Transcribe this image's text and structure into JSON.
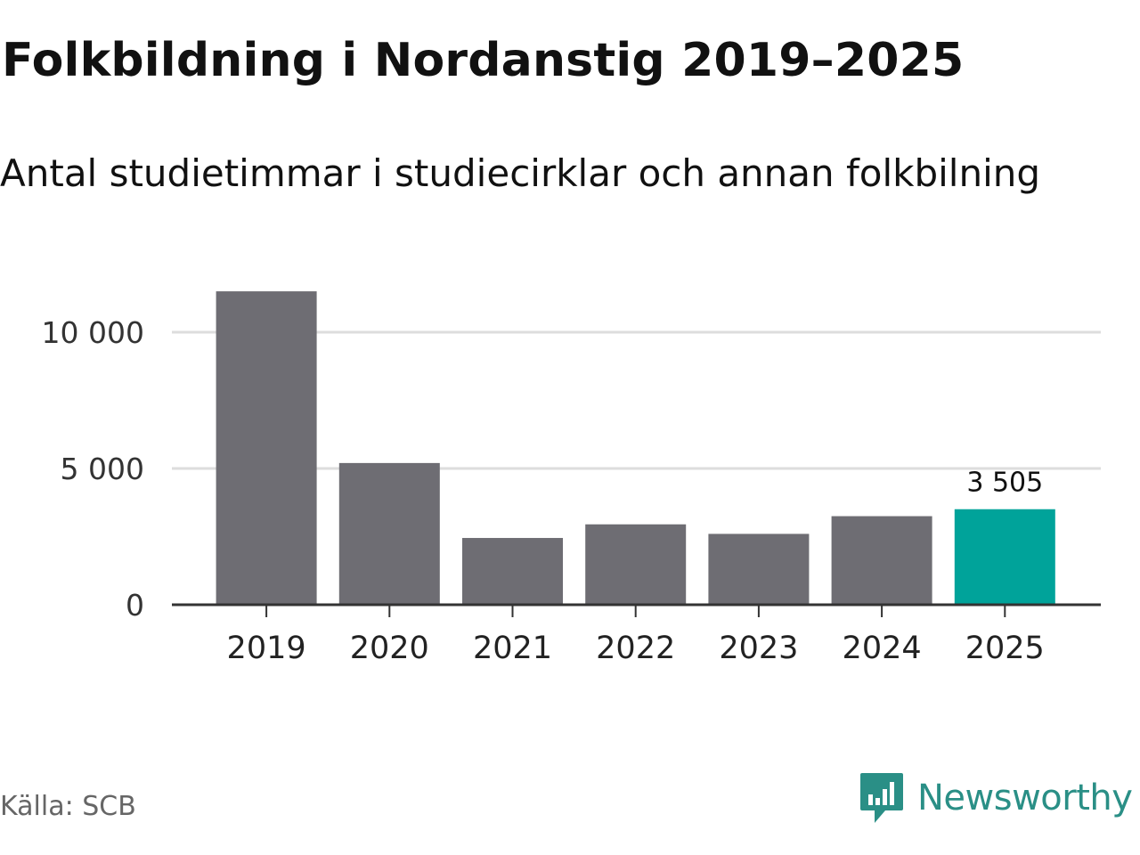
{
  "header": {
    "title": "Folkbildning i Nordanstig 2019–2025",
    "subtitle": "Antal studietimmar i studiecirklar och annan folkbilning"
  },
  "footer": {
    "source": "Källa: SCB",
    "brand": "Newsworthy"
  },
  "colors": {
    "bar": "#6e6d73",
    "highlight": "#00a39a",
    "grid": "#dddddd",
    "axis": "#333333",
    "brand": "#2a8f86"
  },
  "chart_data": {
    "type": "bar",
    "title": "Folkbildning i Nordanstig 2019–2025",
    "subtitle": "Antal studietimmar i studiecirklar och annan folkbilning",
    "categories": [
      "2019",
      "2020",
      "2021",
      "2022",
      "2023",
      "2024",
      "2025"
    ],
    "values": [
      11500,
      5200,
      2450,
      2950,
      2600,
      3250,
      3505
    ],
    "highlight_index": 6,
    "data_labels": [
      {
        "index": 6,
        "text": "3 505"
      }
    ],
    "yticks": [
      {
        "value": 0,
        "label": "0"
      },
      {
        "value": 5000,
        "label": "5 000"
      },
      {
        "value": 10000,
        "label": "10 000"
      }
    ],
    "ylim": [
      0,
      12000
    ],
    "grid": true,
    "xlabel": "",
    "ylabel": ""
  }
}
